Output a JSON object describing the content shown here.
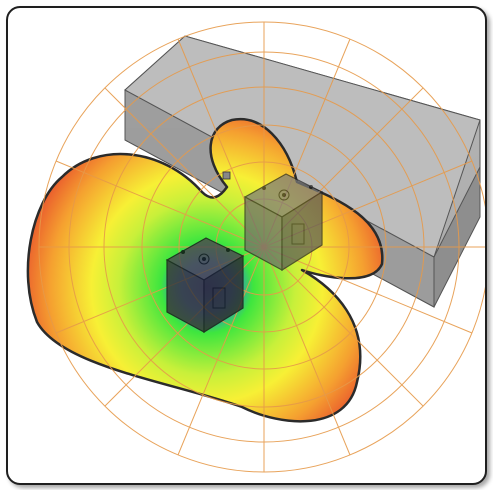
{
  "figure": {
    "icons": [
      "wall-block",
      "radiation-lobe",
      "speaker-cube-front",
      "speaker-cube-back",
      "polar-grid"
    ],
    "colors": {
      "grid": "#e69a4a",
      "lobe_center": "#2e4ce0",
      "lobe_mid": "#3ee63e",
      "lobe_yellow": "#f7f035",
      "lobe_edge": "#e8262a",
      "wall": "#b3b3b3",
      "speaker": "#5a5a5a",
      "outline": "#2b2b2b"
    }
  }
}
